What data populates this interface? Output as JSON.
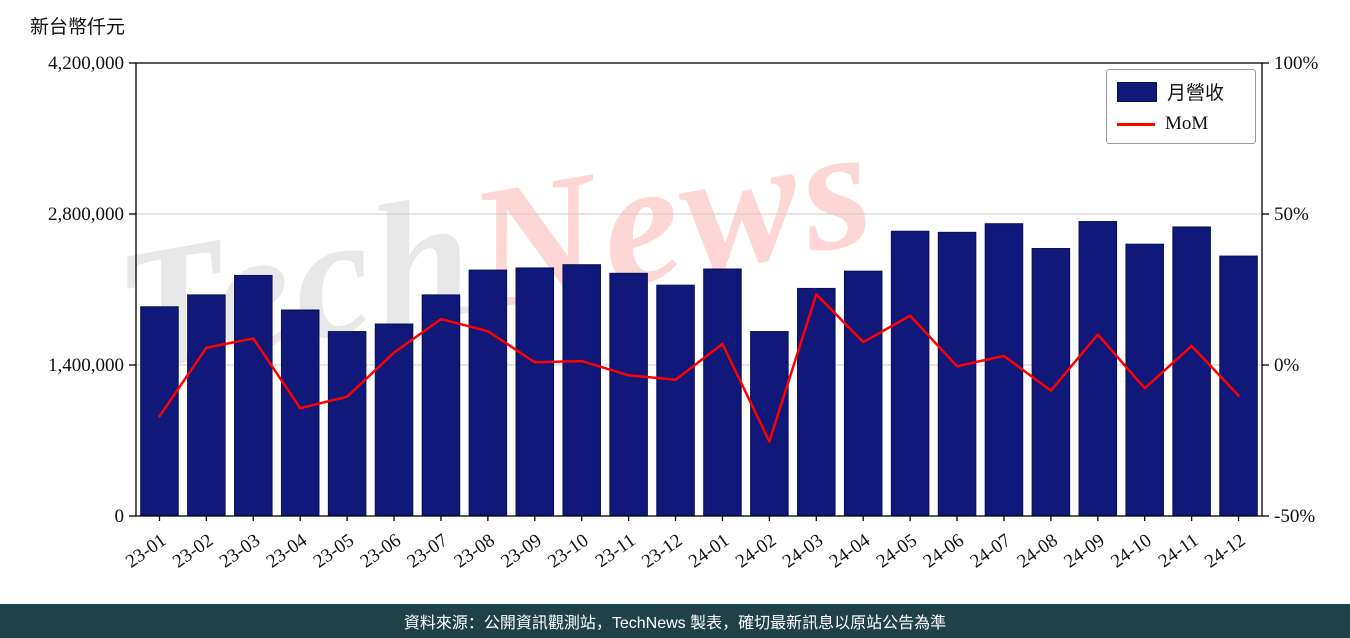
{
  "y_axis_unit": "新台幣仟元",
  "legend": {
    "bar_label": "月營收",
    "line_label": "MoM"
  },
  "watermark": {
    "part1": "Tech",
    "part2": "News"
  },
  "footer": {
    "text": "資料來源：公開資訊觀測站，TechNews 製表，確切最新訊息以原站公告為準"
  },
  "colors": {
    "bar": "#10187a",
    "bar_edge": "#0a1055",
    "line": "#ff0000",
    "grid": "#cccccc",
    "axis": "#000000",
    "footer_bg": "#1e4247",
    "text": "#111111"
  },
  "chart_data": {
    "type": "bar+line",
    "title": "",
    "categories": [
      "23-01",
      "23-02",
      "23-03",
      "23-04",
      "23-05",
      "23-06",
      "23-07",
      "23-08",
      "23-09",
      "23-10",
      "23-11",
      "23-12",
      "24-01",
      "24-02",
      "24-03",
      "24-04",
      "24-05",
      "24-06",
      "24-07",
      "24-08",
      "24-09",
      "24-10",
      "24-11",
      "24-12"
    ],
    "series": [
      {
        "name": "月營收",
        "type": "bar",
        "axis": "left",
        "values": [
          1940000,
          2050000,
          2230000,
          1910000,
          1710000,
          1780000,
          2050000,
          2280000,
          2300000,
          2330000,
          2250000,
          2140000,
          2290000,
          1710000,
          2110000,
          2270000,
          2640000,
          2630000,
          2710000,
          2480000,
          2730000,
          2520000,
          2680000,
          2410000
        ]
      },
      {
        "name": "MoM",
        "type": "line",
        "axis": "right",
        "values": [
          -17,
          5.7,
          8.8,
          -14.3,
          -10.5,
          4.1,
          15.2,
          11.2,
          0.9,
          1.3,
          -3.4,
          -4.9,
          7.0,
          -25.3,
          23.4,
          7.6,
          16.3,
          -0.4,
          3.0,
          -8.5,
          10.1,
          -7.7,
          6.3,
          -10.1
        ]
      }
    ],
    "left_axis": {
      "label": "新台幣仟元",
      "min": 0,
      "max": 4200000,
      "ticks": [
        {
          "value": 0,
          "label": "0"
        },
        {
          "value": 1400000,
          "label": "1,400,000"
        },
        {
          "value": 2800000,
          "label": "2,800,000"
        },
        {
          "value": 4200000,
          "label": "4,200,000"
        }
      ],
      "grid_values": [
        1400000,
        2800000
      ]
    },
    "right_axis": {
      "min": -50,
      "max": 100,
      "ticks": [
        {
          "value": -50,
          "label": "-50%"
        },
        {
          "value": 0,
          "label": "0%"
        },
        {
          "value": 50,
          "label": "50%"
        },
        {
          "value": 100,
          "label": "100%"
        }
      ]
    },
    "legend_position": "top-right",
    "grid": true
  }
}
